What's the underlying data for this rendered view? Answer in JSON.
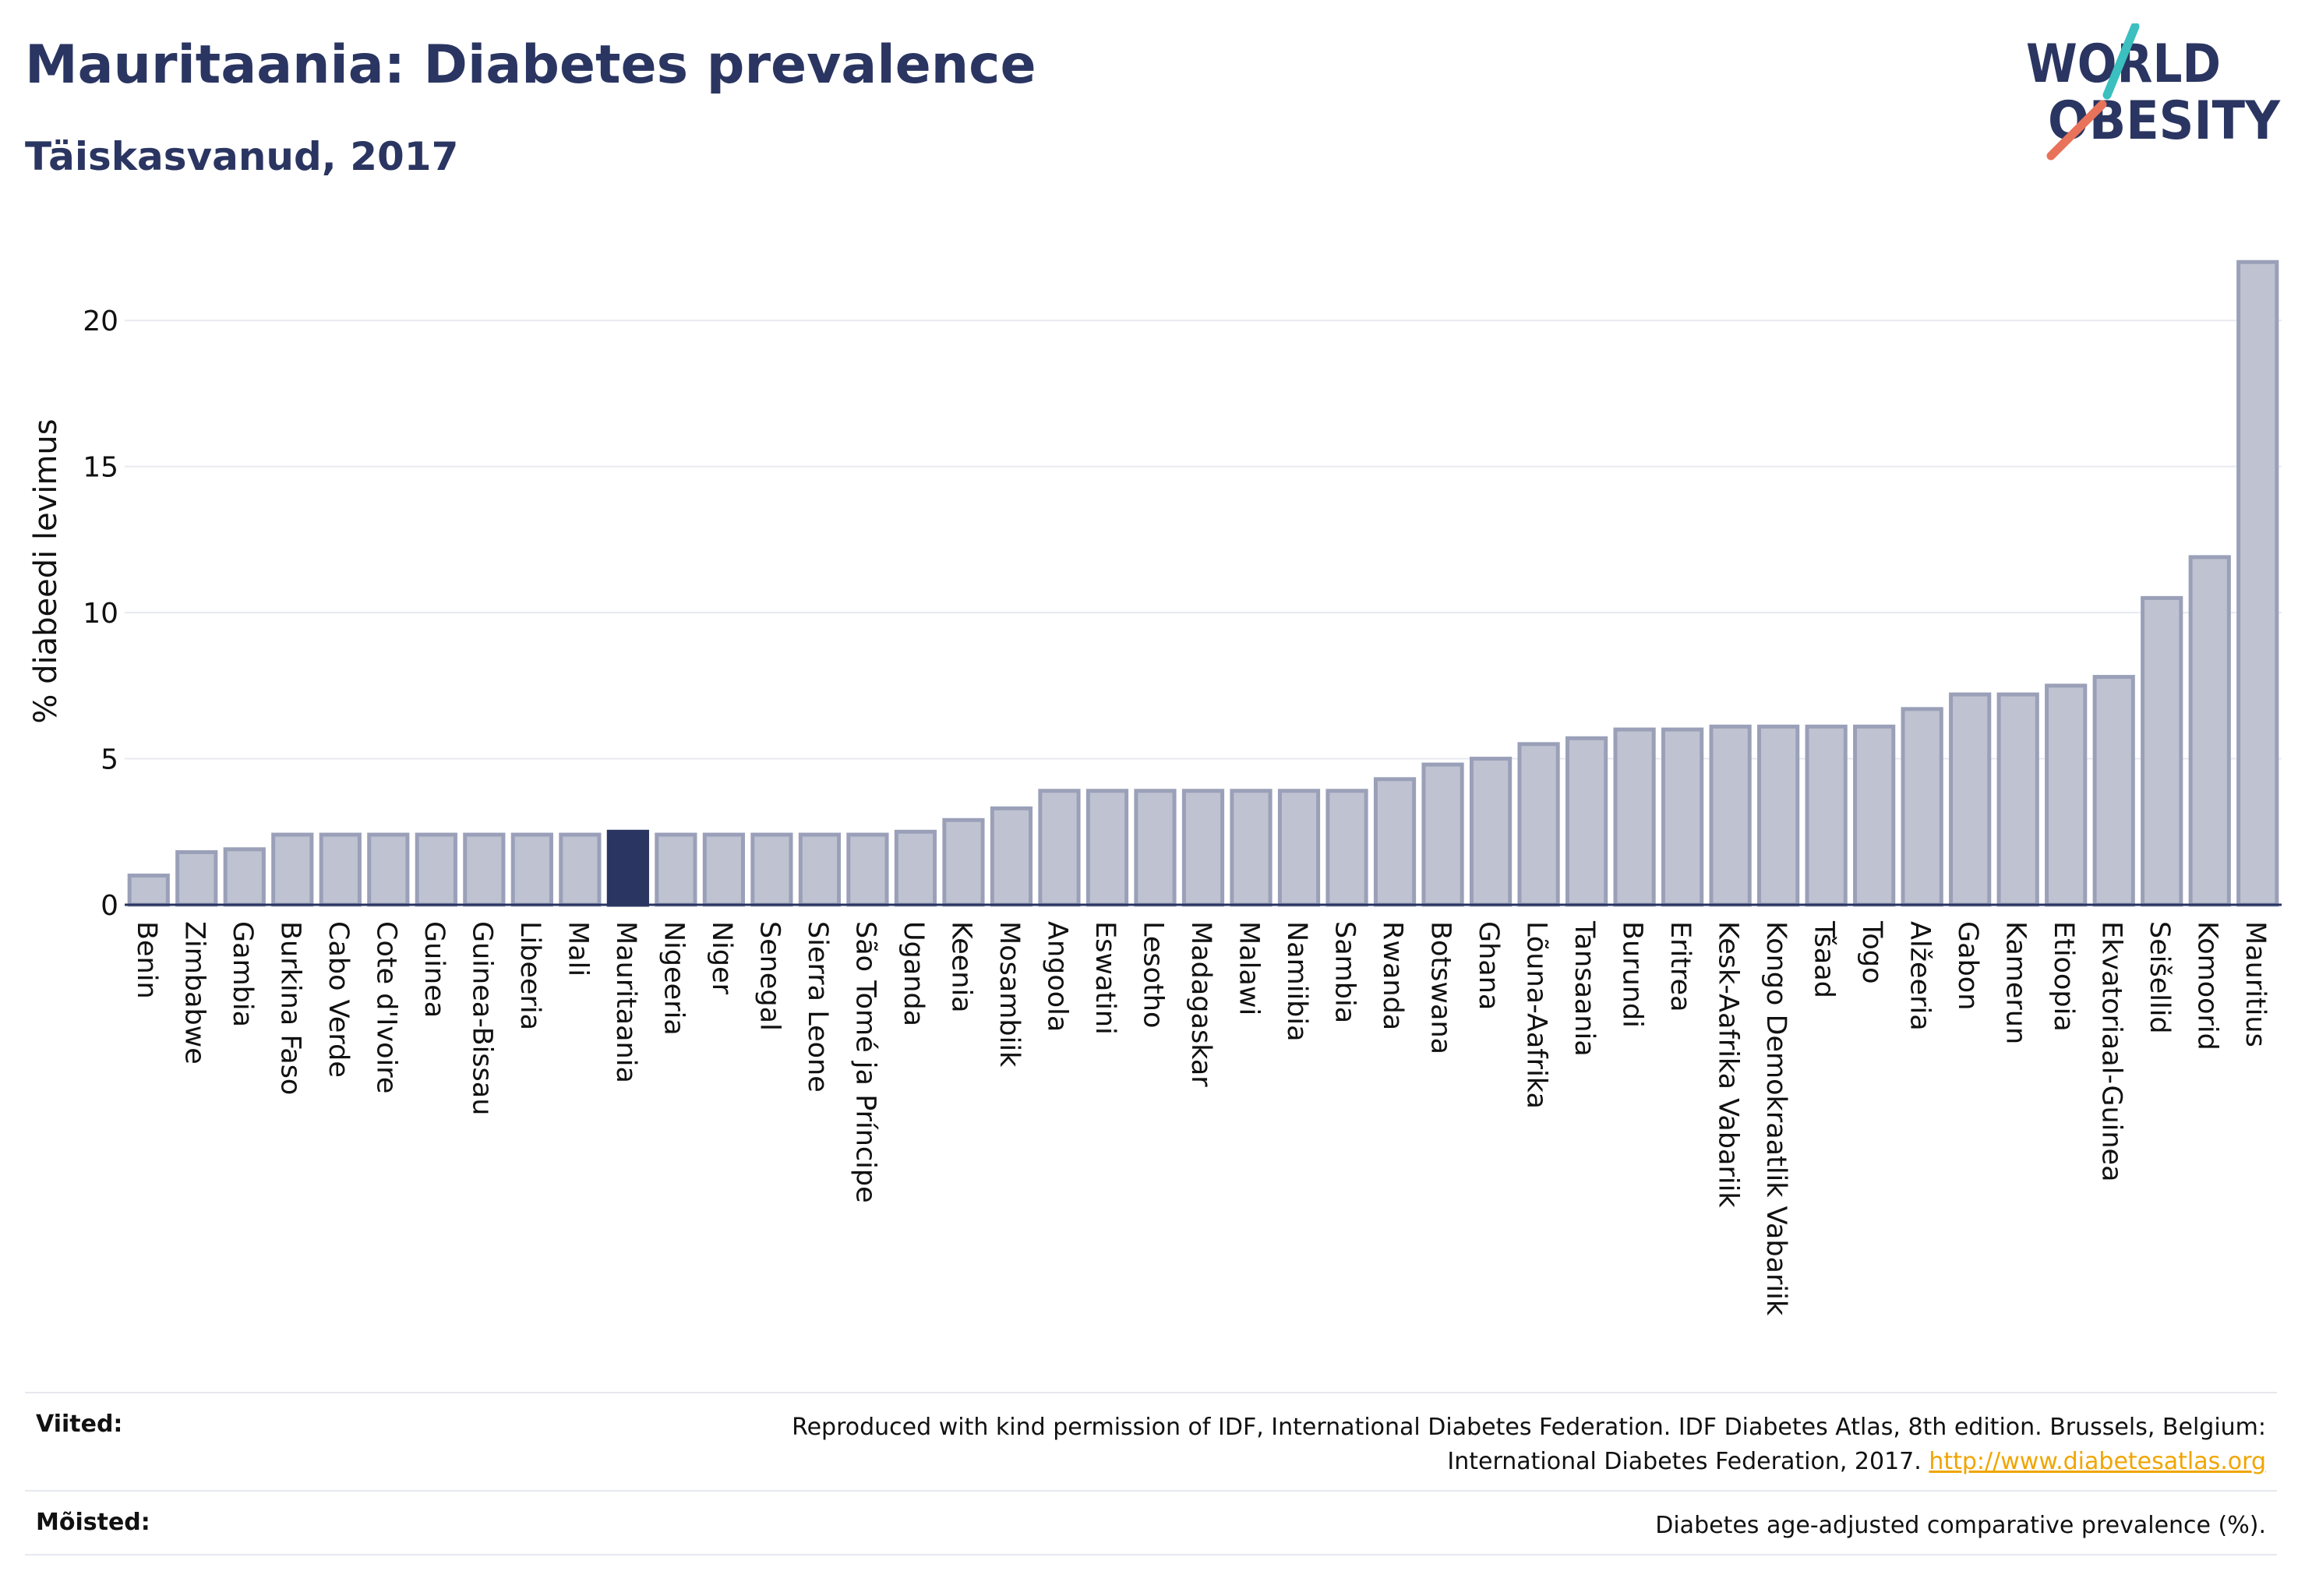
{
  "header": {
    "title": "Mauritaania: Diabetes prevalence",
    "subtitle": "Täiskasvanud, 2017",
    "logo_line1": "WORLD",
    "logo_line2": "OBESITY"
  },
  "colors": {
    "bar": "#bfc3d1",
    "bar_stroke": "#9aa0b8",
    "highlight": "#2a3561",
    "grid": "#e8eaf0",
    "axis": "#2a3561",
    "logo_teal": "#3bbfbf",
    "logo_coral": "#e8735a"
  },
  "chart_data": {
    "type": "bar",
    "ylabel": "% diabeedi levimus",
    "ylim": [
      0,
      22.3
    ],
    "yticks": [
      0,
      5,
      10,
      15,
      20
    ],
    "grid": true,
    "highlight": "Mauritaania",
    "categories": [
      "Benin",
      "Zimbabwe",
      "Gambia",
      "Burkina Faso",
      "Cabo Verde",
      "Cote d'Ivoire",
      "Guinea",
      "Guinea-Bissau",
      "Libeeria",
      "Mali",
      "Mauritaania",
      "Nigeeria",
      "Niger",
      "Senegal",
      "Sierra Leone",
      "São Tomé ja Príncipe",
      "Uganda",
      "Keenia",
      "Mosambiik",
      "Angoola",
      "Eswatini",
      "Lesotho",
      "Madagaskar",
      "Malawi",
      "Namiibia",
      "Sambia",
      "Rwanda",
      "Botswana",
      "Ghana",
      "Lõuna-Aafrika",
      "Tansaania",
      "Burundi",
      "Eritrea",
      "Kesk-Aafrika Vabariik",
      "Kongo Demokraatlik Vabariik",
      "Tšaad",
      "Togo",
      "Alžeeria",
      "Gabon",
      "Kamerun",
      "Etioopia",
      "Ekvatoriaal-Guinea",
      "Seišellid",
      "Komoorid",
      "Mauritius"
    ],
    "values": [
      1.0,
      1.8,
      1.9,
      2.4,
      2.4,
      2.4,
      2.4,
      2.4,
      2.4,
      2.4,
      2.5,
      2.4,
      2.4,
      2.4,
      2.4,
      2.4,
      2.5,
      2.9,
      3.3,
      3.9,
      3.9,
      3.9,
      3.9,
      3.9,
      3.9,
      3.9,
      4.3,
      4.8,
      5.0,
      5.5,
      5.7,
      6.0,
      6.0,
      6.1,
      6.1,
      6.1,
      6.1,
      6.7,
      7.2,
      7.2,
      7.5,
      7.8,
      10.5,
      11.9,
      22.0
    ]
  },
  "footer": {
    "sources_label": "Viited:",
    "sources_text": "Reproduced with kind permission of IDF, International Diabetes Federation. IDF Diabetes Atlas, 8th edition. Brussels, Belgium:",
    "sources_text2": "International Diabetes Federation, 2017.",
    "sources_link": "http://www.diabetesatlas.org",
    "definitions_label": "Mõisted:",
    "definitions_text": "Diabetes age-adjusted comparative prevalence (%)."
  }
}
